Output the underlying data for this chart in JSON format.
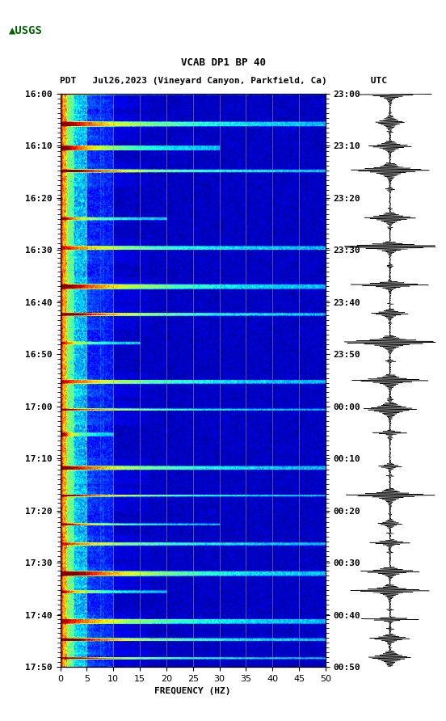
{
  "title_line1": "VCAB DP1 BP 40",
  "title_line2": "PDT   Jul26,2023 (Vineyard Canyon, Parkfield, Ca)        UTC",
  "xlabel": "FREQUENCY (HZ)",
  "freq_min": 0,
  "freq_max": 50,
  "freq_ticks": [
    0,
    5,
    10,
    15,
    20,
    25,
    30,
    35,
    40,
    45,
    50
  ],
  "time_labels_left": [
    "16:00",
    "16:10",
    "16:20",
    "16:30",
    "16:40",
    "16:50",
    "17:00",
    "17:10",
    "17:20",
    "17:30",
    "17:40",
    "17:50"
  ],
  "time_labels_right": [
    "23:00",
    "23:10",
    "23:20",
    "23:30",
    "23:40",
    "23:50",
    "00:00",
    "00:10",
    "00:20",
    "00:30",
    "00:40",
    "00:50"
  ],
  "n_time_steps": 600,
  "n_freq_steps": 500,
  "bg_color": "white",
  "colormap": "jet",
  "vertical_lines_freq": [
    5,
    10,
    15,
    20,
    25,
    30,
    35,
    40,
    45
  ],
  "vertical_line_color": "#b8a060",
  "vertical_line_alpha": 0.6,
  "usgs_logo_color": "#006400",
  "fig_width": 5.52,
  "fig_height": 8.92,
  "event_rows": [
    0,
    30,
    55,
    80,
    130,
    160,
    200,
    230,
    260,
    300,
    330,
    355,
    390,
    420,
    450,
    470,
    500,
    520,
    550,
    570,
    590
  ],
  "event_freq_extents": [
    500,
    500,
    300,
    500,
    200,
    500,
    500,
    500,
    150,
    500,
    500,
    100,
    500,
    500,
    300,
    500,
    500,
    200,
    500,
    500,
    500
  ]
}
